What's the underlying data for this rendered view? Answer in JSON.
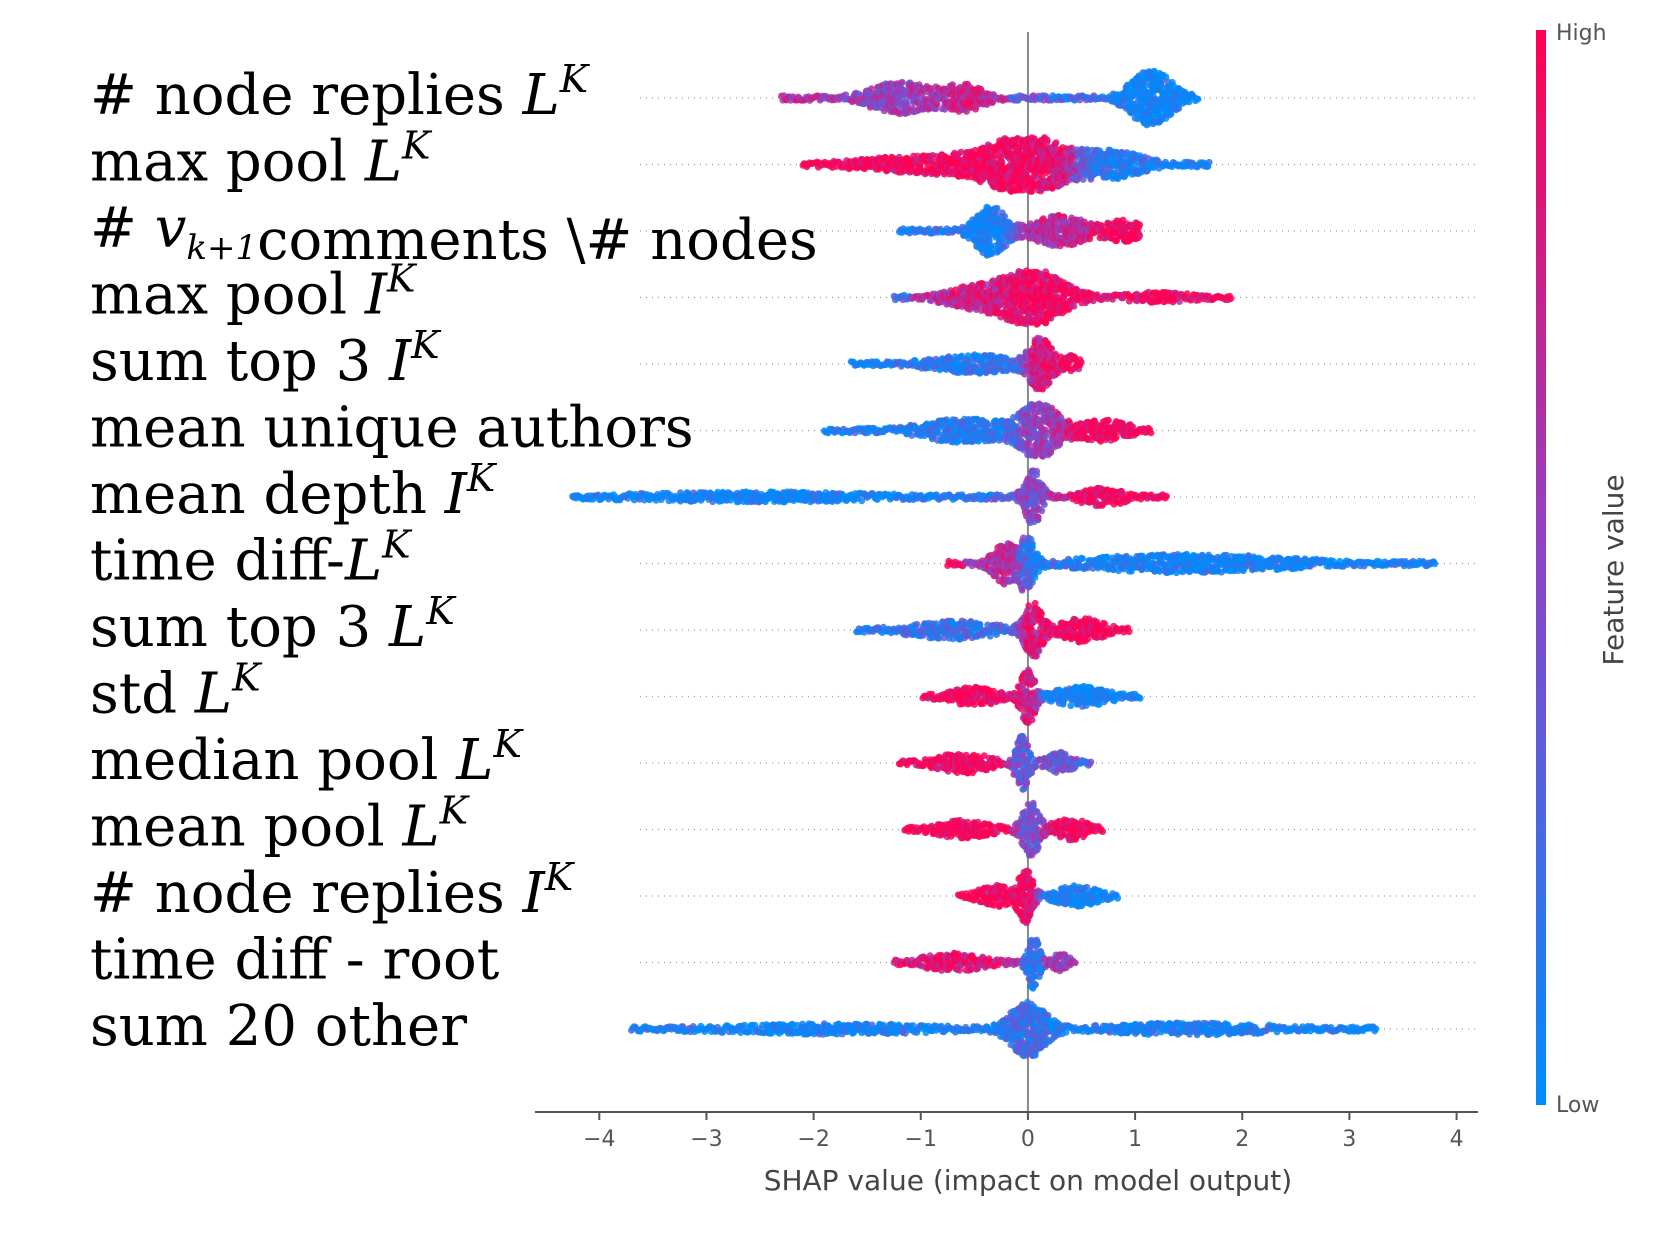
{
  "colors": {
    "high": "#ff0052",
    "low": "#008bfb",
    "axis": "#888888",
    "guide": "#999999"
  },
  "chart_data": {
    "type": "beeswarm",
    "xlabel": "SHAP value (impact on model output)",
    "xlim": [
      -4.6,
      4.2
    ],
    "xticks": [
      {
        "value": -4,
        "label": "−4"
      },
      {
        "value": -3,
        "label": "−3"
      },
      {
        "value": -2,
        "label": "−2"
      },
      {
        "value": -1,
        "label": "−1"
      },
      {
        "value": 0,
        "label": "0"
      },
      {
        "value": 1,
        "label": "1"
      },
      {
        "value": 2,
        "label": "2"
      },
      {
        "value": 3,
        "label": "3"
      },
      {
        "value": 4,
        "label": "4"
      }
    ],
    "colorbar": {
      "title": "Feature value",
      "high_label": "High",
      "low_label": "Low"
    },
    "features": [
      {
        "pre": "# node replies ",
        "math": "L",
        "sup": "K",
        "post": "",
        "range": [
          -2.3,
          1.6
        ],
        "bulges": [
          {
            "x": -1.2,
            "h": 0.55,
            "w": 0.35,
            "c": 0.55
          },
          {
            "x": -0.6,
            "h": 0.45,
            "w": 0.25,
            "c": 0.8
          },
          {
            "x": 1.15,
            "h": 1.0,
            "w": 0.25,
            "c": 0.0
          }
        ],
        "cfrom": 0.75,
        "cto": 0.0
      },
      {
        "pre": "max pool ",
        "math": "L",
        "sup": "K",
        "post": "",
        "range": [
          -2.1,
          1.7
        ],
        "bulges": [
          {
            "x": -0.9,
            "h": 0.3,
            "w": 0.8,
            "c": 1.0
          },
          {
            "x": 0.0,
            "h": 1.0,
            "w": 0.45,
            "c": 0.95
          },
          {
            "x": 0.8,
            "h": 0.45,
            "w": 0.35,
            "c": 0.05
          }
        ],
        "cfrom": 1.0,
        "cto": 0.0
      },
      {
        "pre": "# ",
        "math": "v",
        "sub": "k+1",
        "post": "comments \\# nodes",
        "range": [
          -1.2,
          1.05
        ],
        "bulges": [
          {
            "x": -0.35,
            "h": 0.9,
            "w": 0.18,
            "c": 0.0
          },
          {
            "x": 0.3,
            "h": 0.55,
            "w": 0.3,
            "c": 0.7
          },
          {
            "x": 0.9,
            "h": 0.35,
            "w": 0.2,
            "c": 1.0
          }
        ],
        "cfrom": 0.0,
        "cto": 1.0
      },
      {
        "pre": "max pool ",
        "math": "I",
        "sup": "K",
        "post": "",
        "range": [
          -1.25,
          1.9
        ],
        "bulges": [
          {
            "x": -0.5,
            "h": 0.35,
            "w": 0.35,
            "c": 0.8
          },
          {
            "x": 0.05,
            "h": 1.0,
            "w": 0.35,
            "c": 1.0
          },
          {
            "x": 1.2,
            "h": 0.15,
            "w": 0.4,
            "c": 0.95
          }
        ],
        "cfrom": 0.2,
        "cto": 1.0
      },
      {
        "pre": "sum top 3 ",
        "math": "I",
        "sup": "K",
        "post": "",
        "range": [
          -1.65,
          0.5
        ],
        "bulges": [
          {
            "x": -0.5,
            "h": 0.3,
            "w": 0.5,
            "c": 0.1
          },
          {
            "x": 0.12,
            "h": 0.9,
            "w": 0.13,
            "c": 1.0
          },
          {
            "x": 0.4,
            "h": 0.25,
            "w": 0.1,
            "c": 1.0
          }
        ],
        "cfrom": 0.0,
        "cto": 1.0
      },
      {
        "pre": "mean unique authors",
        "math": "",
        "post": "",
        "range": [
          -1.9,
          1.15
        ],
        "bulges": [
          {
            "x": -0.6,
            "h": 0.4,
            "w": 0.5,
            "c": 0.1
          },
          {
            "x": 0.1,
            "h": 1.0,
            "w": 0.22,
            "c": 0.55
          },
          {
            "x": 0.7,
            "h": 0.35,
            "w": 0.3,
            "c": 1.0
          }
        ],
        "cfrom": 0.0,
        "cto": 1.0
      },
      {
        "pre": "mean depth ",
        "math": "I",
        "sup": "K",
        "post": "",
        "range": [
          -4.25,
          1.3
        ],
        "bulges": [
          {
            "x": -2.5,
            "h": 0.15,
            "w": 1.5,
            "c": 0.0
          },
          {
            "x": 0.05,
            "h": 1.0,
            "w": 0.1,
            "c": 0.5
          },
          {
            "x": 0.7,
            "h": 0.3,
            "w": 0.25,
            "c": 1.0
          }
        ],
        "cfrom": 0.0,
        "cto": 1.0
      },
      {
        "pre": "time diff-",
        "math": "L",
        "sup": "K",
        "post": "",
        "range": [
          -0.75,
          3.8
        ],
        "bulges": [
          {
            "x": -0.2,
            "h": 0.7,
            "w": 0.15,
            "c": 0.75
          },
          {
            "x": 0.0,
            "h": 1.0,
            "w": 0.08,
            "c": 0.1
          },
          {
            "x": 1.5,
            "h": 0.3,
            "w": 1.2,
            "c": 0.0
          }
        ],
        "cfrom": 1.0,
        "cto": 0.0
      },
      {
        "pre": "sum top 3 ",
        "math": "L",
        "sup": "K",
        "post": "",
        "range": [
          -1.6,
          0.95
        ],
        "bulges": [
          {
            "x": -0.7,
            "h": 0.3,
            "w": 0.5,
            "c": 0.2
          },
          {
            "x": 0.05,
            "h": 1.0,
            "w": 0.1,
            "c": 0.9
          },
          {
            "x": 0.5,
            "h": 0.4,
            "w": 0.25,
            "c": 1.0
          }
        ],
        "cfrom": 0.0,
        "cto": 1.0
      },
      {
        "pre": "std ",
        "math": "L",
        "sup": "K",
        "post": "",
        "range": [
          -0.98,
          1.05
        ],
        "bulges": [
          {
            "x": -0.5,
            "h": 0.3,
            "w": 0.3,
            "c": 1.0
          },
          {
            "x": 0.0,
            "h": 1.0,
            "w": 0.08,
            "c": 0.9
          },
          {
            "x": 0.5,
            "h": 0.35,
            "w": 0.3,
            "c": 0.0
          }
        ],
        "cfrom": 1.0,
        "cto": 0.0
      },
      {
        "pre": "median pool ",
        "math": "L",
        "sup": "K",
        "post": "",
        "range": [
          -1.2,
          0.6
        ],
        "bulges": [
          {
            "x": -0.6,
            "h": 0.35,
            "w": 0.3,
            "c": 1.0
          },
          {
            "x": -0.05,
            "h": 1.0,
            "w": 0.08,
            "c": 0.3
          },
          {
            "x": 0.3,
            "h": 0.35,
            "w": 0.15,
            "c": 0.4
          }
        ],
        "cfrom": 1.0,
        "cto": 0.2
      },
      {
        "pre": "mean pool ",
        "math": "L",
        "sup": "K",
        "post": "",
        "range": [
          -1.15,
          0.7
        ],
        "bulges": [
          {
            "x": -0.6,
            "h": 0.3,
            "w": 0.3,
            "c": 1.0
          },
          {
            "x": 0.03,
            "h": 1.0,
            "w": 0.1,
            "c": 0.35
          },
          {
            "x": 0.4,
            "h": 0.35,
            "w": 0.2,
            "c": 1.0
          }
        ],
        "cfrom": 1.0,
        "cto": 1.0
      },
      {
        "pre": "# node replies ",
        "math": "I",
        "sup": "K",
        "post": "",
        "range": [
          -0.65,
          0.85
        ],
        "bulges": [
          {
            "x": -0.3,
            "h": 0.35,
            "w": 0.2,
            "c": 1.0
          },
          {
            "x": -0.02,
            "h": 1.0,
            "w": 0.08,
            "c": 1.0
          },
          {
            "x": 0.45,
            "h": 0.35,
            "w": 0.25,
            "c": 0.0
          }
        ],
        "cfrom": 1.0,
        "cto": 0.0
      },
      {
        "pre": "time diff - root",
        "math": "",
        "post": "",
        "range": [
          -1.25,
          0.45
        ],
        "bulges": [
          {
            "x": -0.7,
            "h": 0.3,
            "w": 0.35,
            "c": 0.9
          },
          {
            "x": 0.05,
            "h": 1.0,
            "w": 0.07,
            "c": 0.1
          },
          {
            "x": 0.3,
            "h": 0.3,
            "w": 0.1,
            "c": 0.6
          }
        ],
        "cfrom": 0.9,
        "cto": 0.3
      },
      {
        "pre": "sum 20 other",
        "math": "",
        "post": "",
        "range": [
          -3.7,
          3.25
        ],
        "bulges": [
          {
            "x": -1.8,
            "h": 0.15,
            "w": 1.3,
            "c": 0.05
          },
          {
            "x": 0.0,
            "h": 1.0,
            "w": 0.2,
            "c": 0.3
          },
          {
            "x": 1.5,
            "h": 0.18,
            "w": 1.0,
            "c": 0.05
          }
        ],
        "cfrom": 0.0,
        "cto": 0.0
      }
    ]
  }
}
